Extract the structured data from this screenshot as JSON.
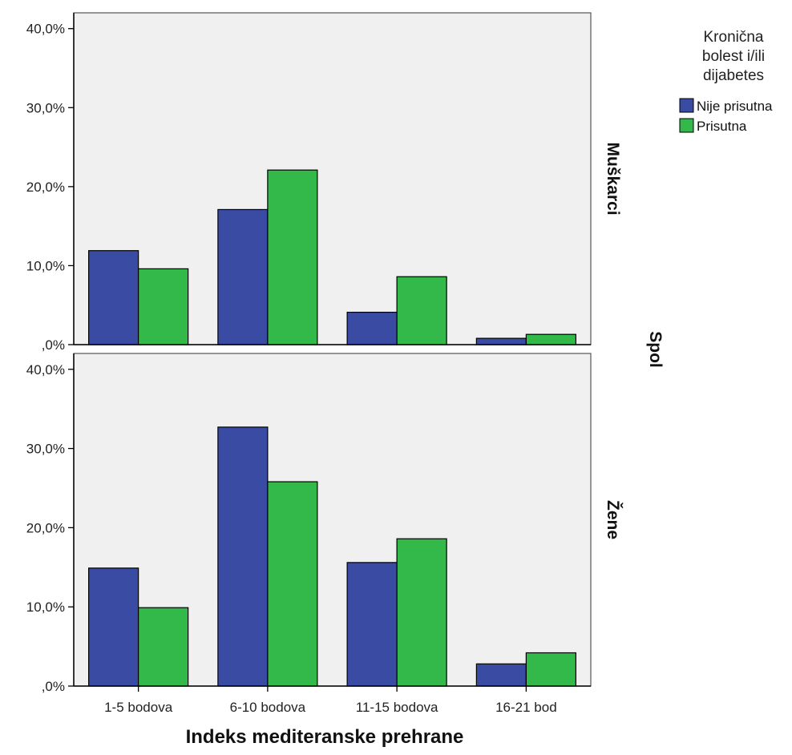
{
  "chart_data": {
    "type": "bar",
    "layout": "paneled",
    "categories": [
      "1-5 bodova",
      "6-10 bodova",
      "11-15 bodova",
      "16-21 bod"
    ],
    "xlabel": "Indeks mediteranske prehrane",
    "panel_variable": "Spol",
    "ylim": [
      0,
      42
    ],
    "yticks": [
      0,
      10,
      20,
      30,
      40
    ],
    "ytick_labels": [
      ",0%",
      "10,0%",
      "20,0%",
      "30,0%",
      "40,0%"
    ],
    "grid": false,
    "legend": {
      "title": "Kronična bolest i/ili dijabetes",
      "title_lines": [
        "Kronična",
        "bolest i/ili",
        "dijabetes"
      ],
      "placement": "top-right"
    },
    "colors": {
      "series": [
        "#3a4ba3",
        "#33b84a"
      ],
      "panel_bg": "#f0f0f0",
      "bar_stroke": "#000000"
    },
    "panels": [
      {
        "name": "Muškarci",
        "series": [
          {
            "name": "Nije prisutna",
            "values": [
              11.9,
              17.1,
              4.1,
              0.8
            ]
          },
          {
            "name": "Prisutna",
            "values": [
              9.6,
              22.1,
              8.6,
              1.3
            ]
          }
        ]
      },
      {
        "name": "Žene",
        "series": [
          {
            "name": "Nije prisutna",
            "values": [
              14.9,
              32.7,
              15.6,
              2.8
            ]
          },
          {
            "name": "Prisutna",
            "values": [
              9.9,
              25.8,
              18.6,
              4.2
            ]
          }
        ]
      }
    ]
  }
}
